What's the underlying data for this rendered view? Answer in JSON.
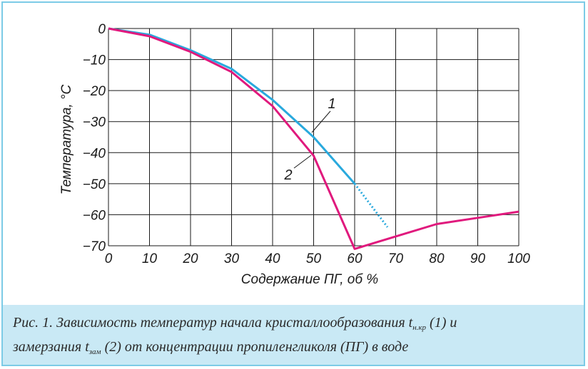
{
  "chart_data": {
    "type": "line",
    "xlabel": "Содержание ПГ, об %",
    "ylabel": "Температура, °С",
    "xlim": [
      0,
      100
    ],
    "ylim": [
      -70,
      0
    ],
    "xticks": [
      0,
      10,
      20,
      30,
      40,
      50,
      60,
      70,
      80,
      90,
      100
    ],
    "yticks": [
      0,
      -10,
      -20,
      -30,
      -40,
      -50,
      -60,
      -70
    ],
    "grid": true,
    "series": [
      {
        "name": "1",
        "color": "#29a9dd",
        "points": [
          [
            0,
            0
          ],
          [
            10,
            -2
          ],
          [
            20,
            -7
          ],
          [
            30,
            -13
          ],
          [
            40,
            -23
          ],
          [
            50,
            -35
          ],
          [
            60,
            -50
          ]
        ],
        "dotted_extension": [
          [
            60,
            -50
          ],
          [
            68,
            -64
          ]
        ]
      },
      {
        "name": "2",
        "color": "#e0197d",
        "points": [
          [
            0,
            0
          ],
          [
            10,
            -2.5
          ],
          [
            20,
            -7.5
          ],
          [
            30,
            -14
          ],
          [
            40,
            -25
          ],
          [
            50,
            -41
          ],
          [
            60,
            -71
          ],
          [
            70,
            -67
          ],
          [
            80,
            -63
          ],
          [
            90,
            -61
          ],
          [
            100,
            -59
          ]
        ]
      }
    ]
  },
  "caption": {
    "line1_prefix": "Рис. 1. Зависимость температур начала кристаллообразования t",
    "sub1": "н.кр",
    "line1_suffix": " (1) и",
    "line2_prefix": "замерзания t",
    "sub2": "зам",
    "line2_suffix": " (2) от концентрации пропиленгликоля (ПГ) в воде"
  }
}
